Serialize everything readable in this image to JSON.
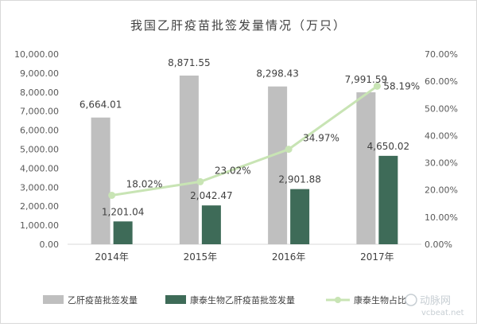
{
  "chart_data": {
    "type": "bar",
    "title": "我国乙肝疫苗批签发量情况（万只）",
    "categories": [
      "2014年",
      "2015年",
      "2016年",
      "2017年"
    ],
    "series": [
      {
        "name": "乙肝疫苗批签发量",
        "type": "bar",
        "axis": "left",
        "color": "#bfbfbf",
        "values": [
          6664.01,
          8871.55,
          8298.43,
          7991.59
        ],
        "labels": [
          "6,664.01",
          "8,871.55",
          "8,298.43",
          "7,991.59"
        ]
      },
      {
        "name": "康泰生物乙肝疫苗批签发量",
        "type": "bar",
        "axis": "left",
        "color": "#3e6b58",
        "values": [
          1201.04,
          2042.47,
          2901.88,
          4650.02
        ],
        "labels": [
          "1,201.04",
          "2,042.47",
          "2,901.88",
          "4,650.02"
        ]
      },
      {
        "name": "康泰生物占比",
        "type": "line",
        "axis": "right",
        "color": "#c8e4b4",
        "values": [
          18.02,
          23.02,
          34.97,
          58.19
        ],
        "labels": [
          "18.02%",
          "23.02%",
          "34.97%",
          "58.19%"
        ]
      }
    ],
    "y_left": {
      "range": [
        0,
        10000
      ],
      "ticks": [
        0,
        1000,
        2000,
        3000,
        4000,
        5000,
        6000,
        7000,
        8000,
        9000,
        10000
      ],
      "tick_labels": [
        "0.00",
        "1,000.00",
        "2,000.00",
        "3,000.00",
        "4,000.00",
        "5,000.00",
        "6,000.00",
        "7,000.00",
        "8,000.00",
        "9,000.00",
        "10,000.00"
      ]
    },
    "y_right": {
      "range": [
        0,
        70
      ],
      "ticks": [
        0,
        10,
        20,
        30,
        40,
        50,
        60,
        70
      ],
      "tick_labels": [
        "0.00%",
        "10.00%",
        "20.00%",
        "30.00%",
        "40.00%",
        "50.00%",
        "60.00%",
        "70.00%"
      ]
    },
    "grid": false,
    "legend_position": "bottom",
    "watermark": "动脉网 vcbeat.net"
  }
}
